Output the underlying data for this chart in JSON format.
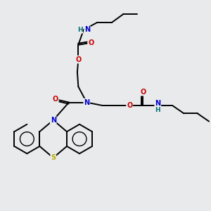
{
  "background_color": "#e8eaec",
  "atom_colors": {
    "N": "#0000cc",
    "O": "#cc0000",
    "S": "#bbaa00",
    "H": "#007070",
    "C": "#000000"
  },
  "bond_color": "#000000",
  "bond_width": 1.4,
  "figsize": [
    3.0,
    3.0
  ],
  "dpi": 100,
  "xlim": [
    0,
    10
  ],
  "ylim": [
    0,
    10
  ]
}
